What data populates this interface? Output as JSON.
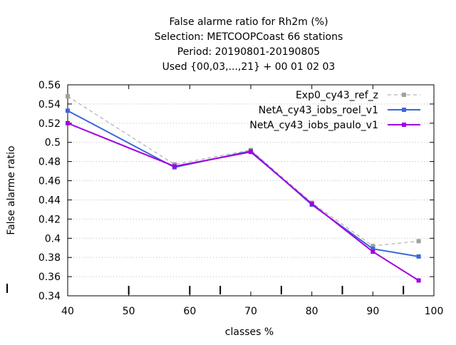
{
  "chart_data": {
    "type": "line",
    "title_lines": [
      "False alarme ratio  for Rh2m (%)",
      "Selection: METCOOPCoast     66 stations",
      "Period: 20190801-20190805",
      "Used {00,03,...,21} + 00 01 02 03"
    ],
    "xlabel": "classes %",
    "ylabel": "False alarme ratio",
    "xlim": [
      40,
      100
    ],
    "ylim": [
      0.34,
      0.56
    ],
    "xticks": [
      40,
      50,
      60,
      70,
      80,
      90,
      100
    ],
    "xtick_labels": [
      "40",
      "50",
      "60",
      "70",
      "80",
      "90",
      "100"
    ],
    "yticks": [
      0.34,
      0.36,
      0.38,
      0.4,
      0.42,
      0.44,
      0.46,
      0.48,
      0.5,
      0.52,
      0.54,
      0.56
    ],
    "ytick_labels": [
      "0.34",
      "0.36",
      "0.38",
      "0.4",
      "0.42",
      "0.44",
      "0.46",
      "0.48",
      "0.5",
      "0.52",
      "0.54",
      "0.56"
    ],
    "extra_bottom_ticks": [
      50,
      60,
      65,
      75,
      85,
      95
    ],
    "grid": true,
    "legend_position": "top-right",
    "x": [
      40,
      57.5,
      70,
      80,
      90,
      97.5
    ],
    "series": [
      {
        "name": "Exp0_cy43_ref_z",
        "color": "#a0a0a0",
        "dashed": true,
        "values": [
          0.548,
          0.477,
          0.492,
          0.437,
          0.392,
          0.397
        ]
      },
      {
        "name": "NetA_cy43_iobs_roel_v1",
        "color": "#3a67d8",
        "dashed": false,
        "values": [
          0.533,
          0.474,
          0.491,
          0.435,
          0.389,
          0.381
        ]
      },
      {
        "name": "NetA_cy43_iobs_paulo_v1",
        "color": "#a200e0",
        "dashed": false,
        "values": [
          0.52,
          0.475,
          0.49,
          0.436,
          0.386,
          0.356
        ]
      }
    ]
  }
}
